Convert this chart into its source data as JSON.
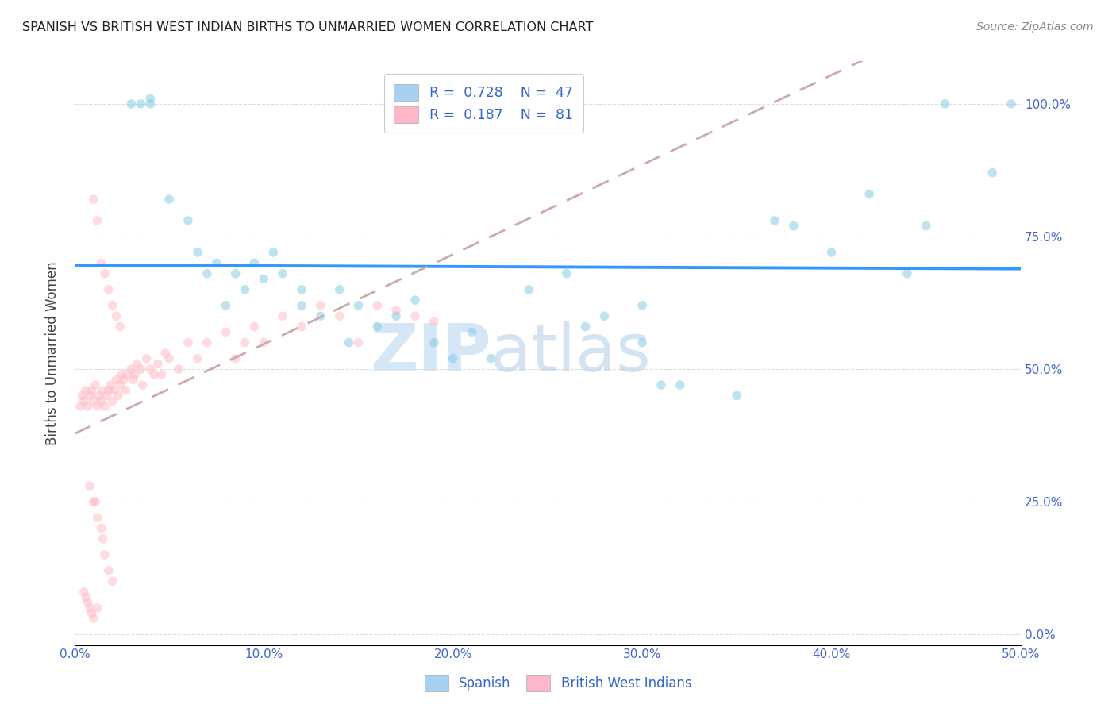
{
  "title": "SPANISH VS BRITISH WEST INDIAN BIRTHS TO UNMARRIED WOMEN CORRELATION CHART",
  "source": "Source: ZipAtlas.com",
  "ylabel": "Births to Unmarried Women",
  "xmin": 0.0,
  "xmax": 0.5,
  "ymin": -0.02,
  "ymax": 1.08,
  "watermark_zip": "ZIP",
  "watermark_atlas": "atlas",
  "scatter_alpha": 0.5,
  "scatter_size": 70,
  "spanish_color": "#7ec8e3",
  "bwi_color": "#ffb6c1",
  "trendline_spanish_color": "#3399ff",
  "trendline_bwi_color": "#ccaaaa",
  "background_color": "#ffffff",
  "grid_color": "#dddddd",
  "axis_color": "#4466cc",
  "source_color": "#888888",
  "spanish_x": [
    0.03,
    0.035,
    0.04,
    0.04,
    0.05,
    0.06,
    0.065,
    0.07,
    0.075,
    0.08,
    0.085,
    0.09,
    0.095,
    0.1,
    0.105,
    0.11,
    0.12,
    0.12,
    0.13,
    0.14,
    0.145,
    0.15,
    0.16,
    0.17,
    0.18,
    0.19,
    0.2,
    0.21,
    0.22,
    0.24,
    0.26,
    0.27,
    0.28,
    0.3,
    0.3,
    0.31,
    0.32,
    0.35,
    0.37,
    0.38,
    0.4,
    0.42,
    0.44,
    0.45,
    0.46,
    0.485,
    0.495
  ],
  "spanish_y": [
    1.0,
    1.0,
    1.0,
    1.01,
    0.82,
    0.78,
    0.72,
    0.68,
    0.7,
    0.62,
    0.68,
    0.65,
    0.7,
    0.67,
    0.72,
    0.68,
    0.65,
    0.62,
    0.6,
    0.65,
    0.55,
    0.62,
    0.58,
    0.6,
    0.63,
    0.55,
    0.52,
    0.57,
    0.52,
    0.65,
    0.68,
    0.58,
    0.6,
    0.55,
    0.62,
    0.47,
    0.47,
    0.45,
    0.78,
    0.77,
    0.72,
    0.83,
    0.68,
    0.77,
    1.0,
    0.87,
    1.0
  ],
  "bwi_x": [
    0.003,
    0.004,
    0.005,
    0.006,
    0.007,
    0.008,
    0.009,
    0.01,
    0.011,
    0.012,
    0.013,
    0.014,
    0.015,
    0.016,
    0.017,
    0.018,
    0.019,
    0.02,
    0.021,
    0.022,
    0.023,
    0.024,
    0.025,
    0.026,
    0.027,
    0.028,
    0.03,
    0.031,
    0.032,
    0.033,
    0.035,
    0.036,
    0.038,
    0.04,
    0.042,
    0.044,
    0.046,
    0.048,
    0.05,
    0.055,
    0.06,
    0.065,
    0.07,
    0.08,
    0.085,
    0.09,
    0.095,
    0.1,
    0.11,
    0.12,
    0.13,
    0.14,
    0.15,
    0.16,
    0.17,
    0.18,
    0.19,
    0.01,
    0.012,
    0.014,
    0.016,
    0.018,
    0.02,
    0.022,
    0.024,
    0.008,
    0.01,
    0.012,
    0.014,
    0.015,
    0.016,
    0.018,
    0.02,
    0.005,
    0.006,
    0.007,
    0.008,
    0.009,
    0.01,
    0.011,
    0.012
  ],
  "bwi_y": [
    0.43,
    0.45,
    0.44,
    0.46,
    0.43,
    0.45,
    0.46,
    0.44,
    0.47,
    0.43,
    0.45,
    0.44,
    0.46,
    0.43,
    0.45,
    0.46,
    0.47,
    0.44,
    0.46,
    0.48,
    0.45,
    0.47,
    0.49,
    0.48,
    0.46,
    0.49,
    0.5,
    0.48,
    0.49,
    0.51,
    0.5,
    0.47,
    0.52,
    0.5,
    0.49,
    0.51,
    0.49,
    0.53,
    0.52,
    0.5,
    0.55,
    0.52,
    0.55,
    0.57,
    0.52,
    0.55,
    0.58,
    0.55,
    0.6,
    0.58,
    0.62,
    0.6,
    0.55,
    0.62,
    0.61,
    0.6,
    0.59,
    0.82,
    0.78,
    0.7,
    0.68,
    0.65,
    0.62,
    0.6,
    0.58,
    0.28,
    0.25,
    0.22,
    0.2,
    0.18,
    0.15,
    0.12,
    0.1,
    0.08,
    0.07,
    0.06,
    0.05,
    0.04,
    0.03,
    0.25,
    0.05
  ]
}
